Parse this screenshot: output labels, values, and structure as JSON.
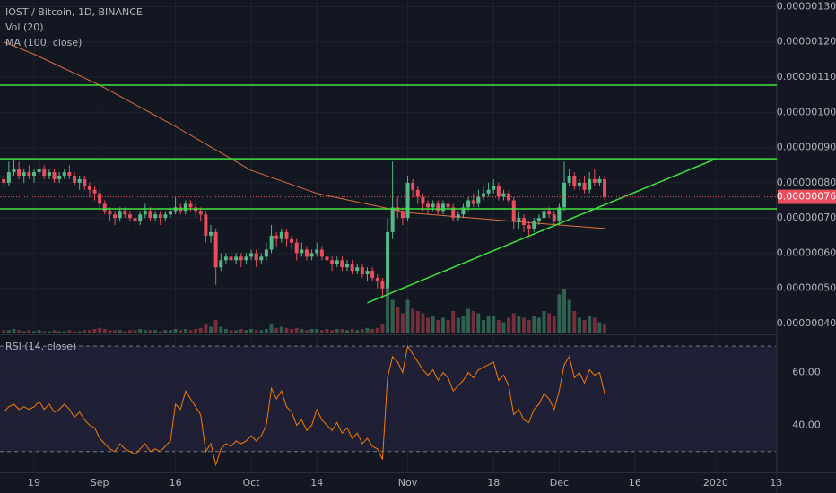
{
  "chart_data": {
    "type": "candlestick",
    "title": "IOST / Bitcoin, 1D, BINANCE",
    "up_color": "#53b987",
    "down_color": "#eb4d5c",
    "open": [
      8.1e-07,
      8e-07,
      8.3e-07,
      8.4e-07,
      8.2e-07,
      8.3e-07,
      8.2e-07,
      8.3e-07,
      8.4e-07,
      8.2e-07,
      8.3e-07,
      8.1e-07,
      8.2e-07,
      8.3e-07,
      8.2e-07,
      8e-07,
      8.1e-07,
      7.9e-07,
      7.8e-07,
      7.7e-07,
      7.4e-07,
      7.2e-07,
      7.1e-07,
      7e-07,
      7.2e-07,
      7.1e-07,
      7e-07,
      6.9e-07,
      7.1e-07,
      7.2e-07,
      7e-07,
      7.1e-07,
      7e-07,
      7.1e-07,
      7.2e-07,
      7.3e-07,
      7.2e-07,
      7.4e-07,
      7.3e-07,
      7.2e-07,
      7.1e-07,
      6.5e-07,
      6.6e-07,
      5.6e-07,
      5.8e-07,
      5.9e-07,
      5.8e-07,
      5.9e-07,
      5.8e-07,
      5.9e-07,
      6e-07,
      5.8e-07,
      5.9e-07,
      6.1e-07,
      6.5e-07,
      6.4e-07,
      6.6e-07,
      6.4e-07,
      6.3e-07,
      6e-07,
      6.1e-07,
      5.9e-07,
      6e-07,
      6.1e-07,
      5.9e-07,
      5.8e-07,
      5.7e-07,
      5.8e-07,
      5.6e-07,
      5.7e-07,
      5.5e-07,
      5.6e-07,
      5.4e-07,
      5.5e-07,
      5.3e-07,
      5.2e-07,
      5e-07,
      6.6e-07,
      7.3e-07,
      7.2e-07,
      7e-07,
      8e-07,
      7.8e-07,
      7.6e-07,
      7.4e-07,
      7.3e-07,
      7.4e-07,
      7.2e-07,
      7.4e-07,
      7.3e-07,
      7e-07,
      7.1e-07,
      7.3e-07,
      7.5e-07,
      7.4e-07,
      7.6e-07,
      7.7e-07,
      7.8e-07,
      7.9e-07,
      7.6e-07,
      7.7e-07,
      7.5e-07,
      6.9e-07,
      7e-07,
      6.8e-07,
      6.7e-07,
      6.9e-07,
      7e-07,
      7.2e-07,
      7.1e-07,
      6.9e-07,
      7.3e-07,
      8e-07,
      8.2e-07,
      7.9e-07,
      8e-07,
      7.8e-07,
      8.1e-07,
      8e-07,
      8.1e-07
    ],
    "high": [
      8.2e-07,
      8.6e-07,
      8.7e-07,
      8.6e-07,
      8.4e-07,
      8.5e-07,
      8.4e-07,
      8.6e-07,
      8.5e-07,
      8.4e-07,
      8.4e-07,
      8.3e-07,
      8.4e-07,
      8.5e-07,
      8.3e-07,
      8.2e-07,
      8.2e-07,
      8e-07,
      7.9e-07,
      7.8e-07,
      7.5e-07,
      7.3e-07,
      7.2e-07,
      7.3e-07,
      7.3e-07,
      7.2e-07,
      7.1e-07,
      7.2e-07,
      7.4e-07,
      7.3e-07,
      7.2e-07,
      7.2e-07,
      7.2e-07,
      7.3e-07,
      7.6e-07,
      7.4e-07,
      7.5e-07,
      7.5e-07,
      7.4e-07,
      7.3e-07,
      7.2e-07,
      6.8e-07,
      6.7e-07,
      6e-07,
      6e-07,
      6e-07,
      6e-07,
      6e-07,
      6e-07,
      6.1e-07,
      6.1e-07,
      6e-07,
      6.3e-07,
      6.8e-07,
      6.6e-07,
      6.7e-07,
      6.7e-07,
      6.5e-07,
      6.4e-07,
      6.3e-07,
      6.2e-07,
      6.1e-07,
      6.3e-07,
      6.2e-07,
      6e-07,
      5.9e-07,
      5.9e-07,
      5.9e-07,
      5.8e-07,
      5.8e-07,
      5.7e-07,
      5.7e-07,
      5.6e-07,
      5.6e-07,
      5.4e-07,
      5.3e-07,
      7e-07,
      8.6e-07,
      7.6e-07,
      7.3e-07,
      8.2e-07,
      8.1e-07,
      7.9e-07,
      7.7e-07,
      7.5e-07,
      7.5e-07,
      7.5e-07,
      7.5e-07,
      7.5e-07,
      7.4e-07,
      7.2e-07,
      7.4e-07,
      7.6e-07,
      7.7e-07,
      7.8e-07,
      7.9e-07,
      8e-07,
      8.1e-07,
      8e-07,
      7.8e-07,
      7.8e-07,
      7.6e-07,
      7.2e-07,
      7.1e-07,
      6.9e-07,
      7e-07,
      7.1e-07,
      7.4e-07,
      7.3e-07,
      7.2e-07,
      7.4e-07,
      8.6e-07,
      8.4e-07,
      8.3e-07,
      8.1e-07,
      8.2e-07,
      8.3e-07,
      8.4e-07,
      8.2e-07,
      8.2e-07
    ],
    "low": [
      7.9e-07,
      7.9e-07,
      8.2e-07,
      8.1e-07,
      8e-07,
      8.1e-07,
      8e-07,
      8.2e-07,
      8.1e-07,
      8.1e-07,
      8e-07,
      8e-07,
      8.1e-07,
      8.1e-07,
      7.9e-07,
      7.8e-07,
      7.8e-07,
      7.6e-07,
      7.5e-07,
      7.3e-07,
      7.1e-07,
      6.9e-07,
      6.8e-07,
      6.9e-07,
      7e-07,
      6.9e-07,
      6.7e-07,
      6.8e-07,
      7e-07,
      6.9e-07,
      6.9e-07,
      6.8e-07,
      6.9e-07,
      7e-07,
      7.1e-07,
      7.1e-07,
      7.1e-07,
      7.2e-07,
      7e-07,
      6.9e-07,
      6.3e-07,
      6.3e-07,
      5.1e-07,
      5.5e-07,
      5.7e-07,
      5.7e-07,
      5.7e-07,
      5.6e-07,
      5.7e-07,
      5.8e-07,
      5.6e-07,
      5.7e-07,
      5.8e-07,
      6e-07,
      6.2e-07,
      6.3e-07,
      6.2e-07,
      6.1e-07,
      5.8e-07,
      5.9e-07,
      5.8e-07,
      5.8e-07,
      5.9e-07,
      5.8e-07,
      5.6e-07,
      5.5e-07,
      5.6e-07,
      5.5e-07,
      5.5e-07,
      5.4e-07,
      5.4e-07,
      5.3e-07,
      5.2e-07,
      5.2e-07,
      5e-07,
      4.7e-07,
      4.9e-07,
      6.4e-07,
      7e-07,
      6.8e-07,
      6.9e-07,
      7.6e-07,
      7.4e-07,
      7.2e-07,
      7.1e-07,
      7.2e-07,
      7.1e-07,
      7.1e-07,
      7.2e-07,
      6.9e-07,
      6.9e-07,
      7e-07,
      7.2e-07,
      7.3e-07,
      7.3e-07,
      7.5e-07,
      7.6e-07,
      7.7e-07,
      7.5e-07,
      7.5e-07,
      7.4e-07,
      6.7e-07,
      6.7e-07,
      6.6e-07,
      6.5e-07,
      6.6e-07,
      6.8e-07,
      6.9e-07,
      7e-07,
      6.8e-07,
      6.8e-07,
      7.2e-07,
      7.9e-07,
      7.8e-07,
      7.8e-07,
      7.7e-07,
      7.7e-07,
      7.9e-07,
      7.9e-07,
      7.5e-07
    ],
    "close": [
      8e-07,
      8.3e-07,
      8.4e-07,
      8.2e-07,
      8.3e-07,
      8.2e-07,
      8.3e-07,
      8.4e-07,
      8.2e-07,
      8.3e-07,
      8.1e-07,
      8.2e-07,
      8.3e-07,
      8.2e-07,
      8e-07,
      8.1e-07,
      7.9e-07,
      7.8e-07,
      7.7e-07,
      7.4e-07,
      7.2e-07,
      7.1e-07,
      7e-07,
      7.2e-07,
      7.1e-07,
      7e-07,
      6.9e-07,
      7.1e-07,
      7.2e-07,
      7e-07,
      7.1e-07,
      7e-07,
      7.1e-07,
      7.2e-07,
      7.3e-07,
      7.2e-07,
      7.4e-07,
      7.3e-07,
      7.2e-07,
      7.1e-07,
      6.5e-07,
      6.6e-07,
      5.6e-07,
      5.8e-07,
      5.9e-07,
      5.8e-07,
      5.9e-07,
      5.8e-07,
      5.9e-07,
      6e-07,
      5.8e-07,
      5.9e-07,
      6.1e-07,
      6.5e-07,
      6.4e-07,
      6.6e-07,
      6.4e-07,
      6.3e-07,
      6e-07,
      6.1e-07,
      5.9e-07,
      6e-07,
      6.1e-07,
      5.9e-07,
      5.8e-07,
      5.7e-07,
      5.8e-07,
      5.6e-07,
      5.7e-07,
      5.5e-07,
      5.6e-07,
      5.4e-07,
      5.5e-07,
      5.3e-07,
      5.2e-07,
      5e-07,
      6.6e-07,
      7.3e-07,
      7.2e-07,
      7e-07,
      8e-07,
      7.8e-07,
      7.6e-07,
      7.4e-07,
      7.3e-07,
      7.4e-07,
      7.2e-07,
      7.4e-07,
      7.3e-07,
      7e-07,
      7.1e-07,
      7.3e-07,
      7.5e-07,
      7.4e-07,
      7.6e-07,
      7.7e-07,
      7.8e-07,
      7.9e-07,
      7.6e-07,
      7.7e-07,
      7.5e-07,
      6.9e-07,
      7e-07,
      6.8e-07,
      6.7e-07,
      6.9e-07,
      7e-07,
      7.2e-07,
      7.1e-07,
      6.9e-07,
      7.3e-07,
      8e-07,
      8.2e-07,
      7.9e-07,
      8e-07,
      7.8e-07,
      8.1e-07,
      8e-07,
      8.1e-07,
      7.6e-07
    ],
    "last_price_label": "0.00000076",
    "volume": {
      "name": "Vol (20)",
      "values": [
        3,
        3,
        4,
        3,
        2,
        3,
        2,
        3,
        2,
        2,
        3,
        2,
        2,
        3,
        2,
        2,
        3,
        3,
        4,
        5,
        4,
        3,
        3,
        3,
        2,
        3,
        3,
        4,
        3,
        3,
        3,
        2,
        3,
        3,
        4,
        3,
        4,
        3,
        4,
        5,
        8,
        6,
        12,
        6,
        4,
        3,
        3,
        4,
        3,
        4,
        3,
        3,
        4,
        8,
        5,
        6,
        5,
        4,
        5,
        4,
        3,
        4,
        4,
        3,
        4,
        3,
        4,
        4,
        3,
        4,
        3,
        4,
        5,
        4,
        5,
        8,
        40,
        30,
        24,
        18,
        30,
        22,
        20,
        18,
        14,
        16,
        12,
        14,
        12,
        20,
        14,
        16,
        22,
        20,
        18,
        12,
        16,
        16,
        12,
        10,
        14,
        18,
        16,
        14,
        12,
        16,
        14,
        20,
        18,
        16,
        35,
        40,
        30,
        20,
        14,
        12,
        16,
        14,
        10,
        8
      ]
    },
    "ma": {
      "name": "MA (100, close)",
      "color": "#e0703a",
      "x": [
        0,
        6,
        19,
        34,
        49,
        62,
        80,
        97,
        110,
        119
      ],
      "values": [
        1.2e-06,
        1.165e-06,
        1.077e-06,
        9.6e-07,
        8.35e-07,
        7.7e-07,
        7.15e-07,
        6.95e-07,
        6.8e-07,
        6.7e-07
      ]
    },
    "rsi": {
      "name": "RSI (14, close)",
      "color": "#f57c00",
      "values": [
        45,
        47,
        48,
        46,
        47,
        46,
        47,
        49,
        46,
        48,
        45,
        46,
        48,
        46,
        43,
        45,
        42,
        40,
        39,
        35,
        33,
        31,
        30,
        33,
        31,
        30,
        29,
        31,
        33,
        30,
        31,
        30,
        32,
        34,
        48,
        46,
        53,
        50,
        47,
        44,
        30,
        33,
        25,
        31,
        33,
        32,
        34,
        33,
        34,
        36,
        34,
        36,
        40,
        54,
        50,
        53,
        47,
        45,
        40,
        42,
        38,
        40,
        46,
        42,
        40,
        38,
        41,
        37,
        39,
        35,
        37,
        33,
        35,
        32,
        31,
        27,
        58,
        66,
        64,
        60,
        70,
        67,
        64,
        61,
        59,
        61,
        57,
        60,
        58,
        53,
        55,
        57,
        60,
        58,
        61,
        62,
        63,
        64,
        57,
        59,
        55,
        44,
        46,
        42,
        41,
        46,
        48,
        52,
        50,
        46,
        53,
        63,
        66,
        58,
        60,
        56,
        61,
        59,
        60,
        52
      ],
      "ylim": [
        22.1,
        73.8
      ],
      "yticks": [
        {
          "value": 60,
          "label": "60.00"
        },
        {
          "value": 40,
          "label": "40.00"
        }
      ],
      "bands": [
        70,
        30
      ]
    },
    "drawings": {
      "color": "#3ee23e",
      "horizontal": [
        1.077e-06,
        8.68e-07,
        7.26e-07
      ],
      "trendline": {
        "x": [
          72,
          141
        ],
        "values": [
          4.59e-07,
          8.68e-07
        ]
      }
    },
    "xlim": [
      -0.75,
      153.1
    ],
    "xticks": [
      {
        "value": 6,
        "label": "19"
      },
      {
        "value": 19,
        "label": "Sep"
      },
      {
        "value": 34,
        "label": "16"
      },
      {
        "value": 49,
        "label": "Oct"
      },
      {
        "value": 62,
        "label": "14"
      },
      {
        "value": 80,
        "label": "Nov"
      },
      {
        "value": 97,
        "label": "18"
      },
      {
        "value": 110,
        "label": "Dec"
      },
      {
        "value": 125,
        "label": "16"
      },
      {
        "value": 141,
        "label": "2020"
      },
      {
        "value": 153,
        "label": "13"
      }
    ],
    "ylim": [
      3.72e-07,
      1.319e-06
    ],
    "yticks": [
      {
        "value": 4e-07,
        "label": "0.00000040"
      },
      {
        "value": 5e-07,
        "label": "0.00000050"
      },
      {
        "value": 6e-07,
        "label": "0.00000060"
      },
      {
        "value": 7e-07,
        "label": "0.00000070"
      },
      {
        "value": 8e-07,
        "label": "0.00000080"
      },
      {
        "value": 9e-07,
        "label": "0.00000090"
      },
      {
        "value": 1e-06,
        "label": "0.00000100"
      },
      {
        "value": 1.1e-06,
        "label": "0.00000110"
      },
      {
        "value": 1.2e-06,
        "label": "0.00000120"
      },
      {
        "value": 1.3e-06,
        "label": "0.00000130"
      }
    ],
    "grid": true
  }
}
